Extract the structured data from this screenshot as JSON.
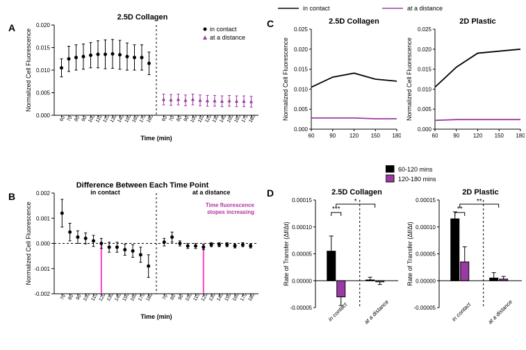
{
  "colors": {
    "contact": "#000000",
    "distance": "#9a3aa2",
    "pink": "#ff3ec9"
  },
  "top_legend": {
    "left": "in contact",
    "right": "at a distance"
  },
  "panel_letters": {
    "A": "A",
    "B": "B",
    "C": "C",
    "D": "D"
  },
  "A": {
    "title": "2.5D Collagen",
    "ylabel": "Normalized Cell Fluorescence",
    "xlabel": "Time (min)",
    "ylim": [
      0,
      0.02
    ],
    "yticks": [
      0.0,
      0.005,
      0.01,
      0.015,
      0.02
    ],
    "yticklabels": [
      "0.000",
      "0.005",
      "0.010",
      "0.015",
      "0.020"
    ],
    "xticks": [
      60,
      70,
      80,
      90,
      100,
      110,
      120,
      130,
      140,
      150,
      160,
      170,
      180
    ],
    "legend": {
      "contact": "in contact",
      "distance": "at a distance"
    },
    "contact": {
      "y": [
        0.0105,
        0.0125,
        0.0128,
        0.013,
        0.0133,
        0.0135,
        0.0135,
        0.0136,
        0.0134,
        0.013,
        0.0128,
        0.0128,
        0.0115
      ],
      "err": [
        0.002,
        0.0028,
        0.0028,
        0.0028,
        0.0028,
        0.003,
        0.0032,
        0.0032,
        0.0032,
        0.003,
        0.0028,
        0.0028,
        0.0025
      ]
    },
    "distance": {
      "y": [
        0.0035,
        0.0034,
        0.0035,
        0.0033,
        0.0035,
        0.0033,
        0.0032,
        0.0032,
        0.0031,
        0.0032,
        0.0031,
        0.0031,
        0.003
      ],
      "err": [
        0.0012,
        0.0012,
        0.0012,
        0.0012,
        0.0012,
        0.0012,
        0.0012,
        0.0012,
        0.0012,
        0.0012,
        0.0012,
        0.0012,
        0.0012
      ]
    }
  },
  "B": {
    "title": "Difference Between Each Time Point",
    "ylabel": "Normalized Cell Fluorescence",
    "xlabel": "Time (min)",
    "ylim": [
      -0.002,
      0.002
    ],
    "yticks": [
      -0.002,
      -0.001,
      0.0,
      0.001,
      0.002
    ],
    "yticklabels": [
      "-0.002",
      "-0.001",
      "0.000",
      "0.001",
      "0.002"
    ],
    "xticks": [
      70,
      80,
      90,
      100,
      110,
      120,
      130,
      140,
      150,
      160,
      170,
      180
    ],
    "head_left": "in contact",
    "head_right": "at a distance",
    "annotation": "Time fluorescence stopes increasing",
    "pink_at": 120,
    "contact": {
      "y": [
        0.0012,
        0.00045,
        0.00025,
        0.0002,
        0.0001,
        0.0,
        -0.00015,
        -0.00015,
        -0.00025,
        -0.0003,
        -0.00045,
        -0.0009
      ],
      "err": [
        0.00055,
        0.00035,
        0.00025,
        0.00022,
        0.00022,
        0.0002,
        0.0002,
        0.0002,
        0.00022,
        0.00025,
        0.0003,
        0.00045
      ]
    },
    "distance": {
      "y": [
        5e-05,
        0.00025,
        0.0,
        -0.0001,
        -0.0001,
        -0.00015,
        -5e-05,
        -5e-05,
        -5e-05,
        -0.0001,
        -5e-05,
        -0.0001
      ],
      "err": [
        0.00015,
        0.0002,
        0.0001,
        0.0001,
        0.0001,
        0.0001,
        8e-05,
        8e-05,
        8e-05,
        8e-05,
        8e-05,
        8e-05
      ]
    }
  },
  "C": {
    "ylim": [
      0,
      0.025
    ],
    "yticks": [
      0.0,
      0.005,
      0.01,
      0.015,
      0.02,
      0.025
    ],
    "yticklabels": [
      "0.000",
      "0.005",
      "0.010",
      "0.015",
      "0.020",
      "0.025"
    ],
    "xticks": [
      60,
      90,
      120,
      150,
      180
    ],
    "left": {
      "title": "2.5D Collagen",
      "ylabel": "Normalized Cell Fluorescence",
      "contact": [
        0.0105,
        0.013,
        0.014,
        0.0125,
        0.012
      ],
      "distance": [
        0.0028,
        0.0028,
        0.0028,
        0.0026,
        0.0026
      ]
    },
    "right": {
      "title": "2D Plastic",
      "ylabel": "Normalized Cell Fluorescence",
      "contact": [
        0.0105,
        0.0155,
        0.019,
        0.0195,
        0.02
      ],
      "distance": [
        0.0022,
        0.0024,
        0.0024,
        0.0024,
        0.0024
      ]
    }
  },
  "D": {
    "ylabel": "Rate of Transfer  (Δf/Δt)",
    "ylim": [
      -5e-05,
      0.00015
    ],
    "yticks": [
      -5e-05,
      0.0,
      5e-05,
      0.0001,
      0.00015
    ],
    "yticklabels": [
      "-0.00005",
      "0.00000",
      "0.00005",
      "0.00010",
      "0.00015"
    ],
    "groups": [
      "in contact",
      "at a distance"
    ],
    "legend": {
      "k": "60-120 mins",
      "m": "120-180 mins"
    },
    "left": {
      "title": "2.5D Collagen",
      "in_contact": {
        "k": 5.5e-05,
        "k_err": 2.8e-05,
        "m": -3e-05,
        "m_err": 1.6e-05
      },
      "at_distance": {
        "k": 1.5e-06,
        "k_err": 5e-06,
        "m": -2e-06,
        "m_err": 5e-06
      },
      "sig": [
        {
          "label": "***",
          "between": "contact_pair"
        },
        {
          "label": "*",
          "between": "pairs"
        }
      ]
    },
    "right": {
      "title": "2D Plastic",
      "in_contact": {
        "k": 0.000115,
        "k_err": 1.3e-05,
        "m": 3.5e-05,
        "m_err": 2.8e-05
      },
      "at_distance": {
        "k": 5e-06,
        "k_err": 1e-05,
        "m": 3e-06,
        "m_err": 5e-06
      },
      "sig": [
        {
          "label": "**",
          "between": "contact_pair"
        },
        {
          "label": "**",
          "between": "pairs"
        }
      ]
    }
  }
}
